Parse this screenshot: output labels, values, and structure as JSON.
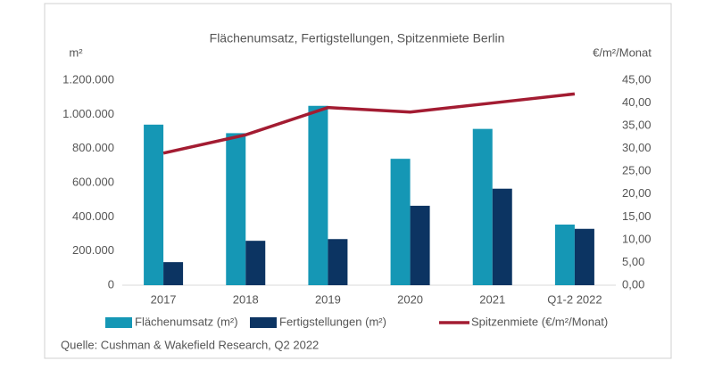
{
  "chart_data": {
    "type": "bar_line",
    "title": "Flächenumsatz, Fertigstellungen, Spitzenmiete Berlin",
    "ylabel": "m²",
    "y2label": "€/m²/Monat",
    "source": "Quelle: Cushman & Wakefield Research, Q2 2022",
    "categories": [
      "2017",
      "2018",
      "2019",
      "2020",
      "2021",
      "Q1-2 2022"
    ],
    "series": [
      {
        "name": "Flächenumsatz (m²)",
        "type": "bar",
        "color": "#1597b5",
        "values": [
          940000,
          890000,
          1050000,
          740000,
          915000,
          355000
        ]
      },
      {
        "name": "Fertigstellungen (m²)",
        "type": "bar",
        "color": "#0c3462",
        "values": [
          135000,
          260000,
          270000,
          465000,
          565000,
          330000
        ]
      },
      {
        "name": "Spitzenmiete (€/m²/Monat)",
        "type": "line",
        "axis": "y2",
        "color": "#a31c32",
        "values": [
          29,
          33,
          39,
          38,
          40,
          42
        ]
      }
    ],
    "ylim": [
      0,
      1200000
    ],
    "yticks": [
      0,
      {
        "value": 200000,
        "label": "200.000"
      },
      {
        "value": 400000,
        "label": "400.000"
      },
      {
        "value": 600000,
        "label": "600.000"
      },
      {
        "value": 800000,
        "label": "800.000"
      },
      {
        "value": 1000000,
        "label": "1.000.000"
      },
      {
        "value": 1200000,
        "label": "1.200.000"
      }
    ],
    "y2lim": [
      0,
      45
    ],
    "y2ticks": [
      {
        "value": 0,
        "label": "0,00"
      },
      {
        "value": 5,
        "label": "5,00"
      },
      {
        "value": 10,
        "label": "10,00"
      },
      {
        "value": 15,
        "label": "15,00"
      },
      {
        "value": 20,
        "label": "20,00"
      },
      {
        "value": 25,
        "label": "25,00"
      },
      {
        "value": 30,
        "label": "30,00"
      },
      {
        "value": 35,
        "label": "35,00"
      },
      {
        "value": 40,
        "label": "40,00"
      },
      {
        "value": 45,
        "label": "45,00"
      }
    ],
    "grid": false,
    "legend": "bottom"
  }
}
